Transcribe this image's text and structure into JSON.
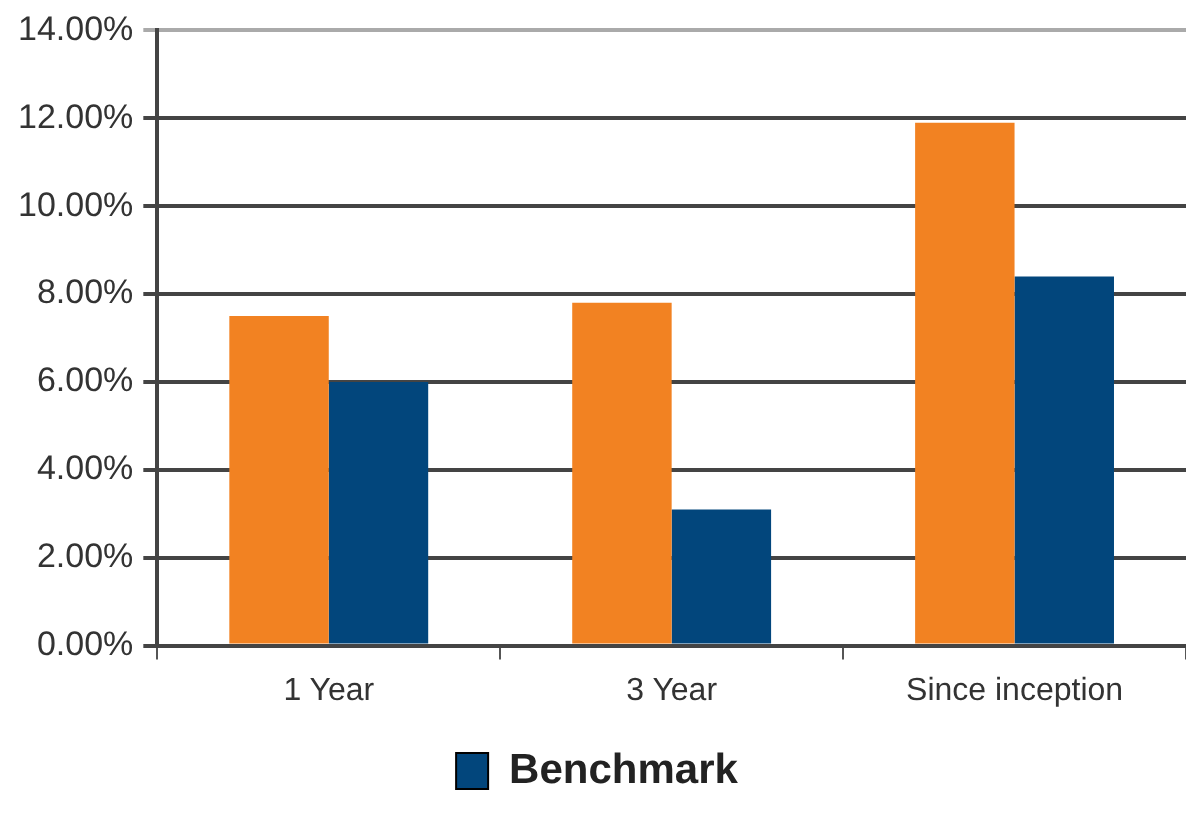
{
  "chart_data": {
    "type": "bar",
    "categories": [
      "1 Year",
      "3 Year",
      "Since inception"
    ],
    "series": [
      {
        "color": "#f28222",
        "values": [
          7.5,
          7.8,
          11.9
        ]
      },
      {
        "name": "Benchmark",
        "color": "#02467c",
        "values": [
          6.0,
          3.1,
          8.4
        ]
      }
    ],
    "ylim": [
      0,
      14
    ],
    "yticks": [
      {
        "value": 0,
        "label": "0.00%"
      },
      {
        "value": 2,
        "label": "2.00%"
      },
      {
        "value": 4,
        "label": "4.00%"
      },
      {
        "value": 6,
        "label": "6.00%"
      },
      {
        "value": 8,
        "label": "8.00%"
      },
      {
        "value": 10,
        "label": "10.00%"
      },
      {
        "value": 12,
        "label": "12.00%"
      },
      {
        "value": 14,
        "label": "14.00%"
      }
    ],
    "grid": "y",
    "legend": "bottom"
  }
}
